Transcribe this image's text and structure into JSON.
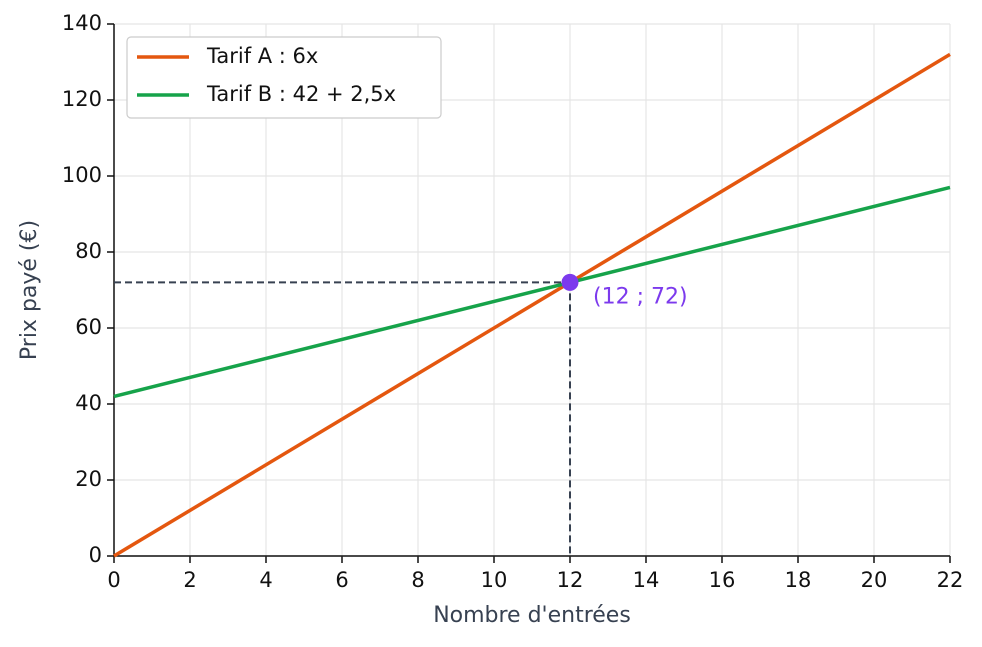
{
  "chart_data": {
    "type": "line",
    "xlabel": "Nombre d'entrées",
    "ylabel": "Prix payé (€)",
    "x": [
      0,
      22
    ],
    "series": [
      {
        "name": "Tarif A : 6x",
        "color": "#e4570f",
        "values": [
          0,
          132
        ]
      },
      {
        "name": "Tarif B : 42 + 2,5x",
        "color": "#16a34a",
        "values": [
          42,
          97
        ]
      }
    ],
    "point": {
      "x": 12,
      "y": 72,
      "label": "(12 ; 72)",
      "color": "#7c3aed"
    },
    "xlim": [
      0,
      22
    ],
    "xticks": [
      0,
      2,
      4,
      6,
      8,
      10,
      12,
      14,
      16,
      18,
      20,
      22
    ],
    "ylim": [
      0,
      140
    ],
    "yticks": [
      0,
      20,
      40,
      60,
      80,
      100,
      120,
      140
    ],
    "grid": true,
    "legend": "upper left"
  }
}
